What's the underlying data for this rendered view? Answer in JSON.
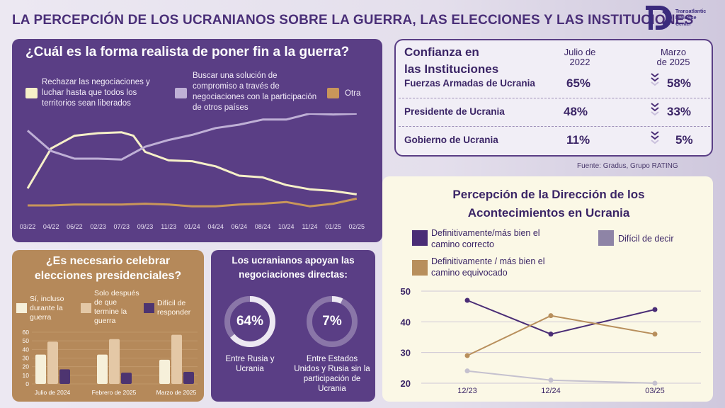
{
  "title": "LA PERCEPCIÓN DE LOS UCRANIANOS SOBRE LA GUERRA, LAS ELECCIONES Y LAS INSTITUCIONES",
  "logo": {
    "line1": "Transatlantic",
    "line2": "Dialogue",
    "line3": "Center"
  },
  "war": {
    "title": "¿Cuál es la forma realista de poner fin a la guerra?",
    "legend": [
      {
        "label": "Rechazar las negociaciones y luchar hasta que todos los territorios sean liberados",
        "color": "#f6f0c8"
      },
      {
        "label": "Buscar una solución de compromiso a través de negociaciones con la participación de otros países",
        "color": "#bfb0d6"
      },
      {
        "label": "Otra",
        "color": "#c9965a"
      }
    ]
  },
  "trust": {
    "title_line1": "Confianza en",
    "title_line2": "las Instituciones",
    "col1_line1": "Julio de",
    "col1_line2": "2022",
    "col2_line1": "Marzo",
    "col2_line2": "de 2025",
    "rows": [
      {
        "name": "Fuerzas Armadas de Ucrania",
        "v2022": "65%",
        "v2025": "58%"
      },
      {
        "name": "Presidente de Ucrania",
        "v2022": "48%",
        "v2025": "33%"
      },
      {
        "name": "Gobierno de Ucrania",
        "v2022": "11%",
        "v2025": "5%"
      }
    ],
    "source": "Fuente: Gradus, Grupo RATING"
  },
  "direction": {
    "title_line1": "Percepción de la Dirección de los",
    "title_line2": "Acontecimientos en Ucrania",
    "legend": [
      {
        "label_line1": "Definitivamente/más bien el",
        "label_line2": "camino correcto",
        "color": "#4a2d76"
      },
      {
        "label_line1": "Difícil de decir",
        "label_line2": "",
        "color": "#8e84a6"
      },
      {
        "label_line1": "Definitivamente / más bien el",
        "label_line2": "camino equivocado",
        "color": "#b88f5c"
      }
    ]
  },
  "elections": {
    "title_line1": "¿Es necesario celebrar",
    "title_line2": "elecciones presidenciales?",
    "legend": [
      {
        "lines": [
          "Sí, incluso",
          "durante la",
          "guerra"
        ],
        "color": "#f6f0da"
      },
      {
        "lines": [
          "Solo después",
          "de que",
          "termine la",
          "guerra"
        ],
        "color": "#e4c8a6"
      },
      {
        "lines": [
          "Difícil de",
          "responder"
        ],
        "color": "#4d3470"
      }
    ]
  },
  "negotiations": {
    "title_line1": "Los ucranianos apoyan las",
    "title_line2": "negociaciones directas:",
    "items": [
      {
        "value": "64%",
        "fraction": 0.64,
        "lines": [
          "Entre Rusia y",
          "Ucrania"
        ]
      },
      {
        "value": "7%",
        "fraction": 0.07,
        "lines": [
          "Entre Estados",
          "Unidos y Rusia sin la",
          "participación de",
          "Ucrania"
        ]
      }
    ]
  },
  "chart_data": [
    {
      "type": "line",
      "title": "¿Cuál es la forma realista de poner fin a la guerra?",
      "x": [
        "03/22",
        "04/22",
        "06/22",
        "02/23",
        "07/23",
        "09/23",
        "11/23",
        "01/24",
        "04/24",
        "06/24",
        "08/24",
        "10/24",
        "11/24",
        "01/25",
        "02/25"
      ],
      "series": [
        {
          "name": "Rechazar las negociaciones y luchar hasta que todos los territorios sean liberados",
          "color": "#f6f0c8",
          "values": [
            null,
            null,
            null,
            null,
            null,
            null,
            null,
            null,
            null,
            null,
            null,
            null,
            null,
            null,
            null
          ],
          "points": [
            [
              0,
              0.3
            ],
            [
              1,
              0.77
            ],
            [
              2,
              0.92
            ],
            [
              3,
              0.95
            ],
            [
              4,
              0.96
            ],
            [
              4.5,
              0.92
            ],
            [
              5,
              0.73
            ],
            [
              6,
              0.63
            ],
            [
              7,
              0.62
            ],
            [
              8,
              0.56
            ],
            [
              9,
              0.45
            ],
            [
              10,
              0.43
            ],
            [
              11,
              0.34
            ],
            [
              12,
              0.29
            ],
            [
              13,
              0.27
            ],
            [
              14,
              0.23
            ]
          ]
        },
        {
          "name": "Buscar una solución de compromiso a través de negociaciones con la participación de otros países",
          "color": "#bfb0d6",
          "points": [
            [
              0,
              0.98
            ],
            [
              1,
              0.74
            ],
            [
              2,
              0.65
            ],
            [
              3,
              0.65
            ],
            [
              4,
              0.64
            ],
            [
              5,
              0.79
            ],
            [
              6,
              0.87
            ],
            [
              7,
              0.93
            ],
            [
              8,
              1.01
            ],
            [
              9,
              1.05
            ],
            [
              10,
              1.11
            ],
            [
              11,
              1.11
            ],
            [
              12,
              1.18
            ],
            [
              13,
              1.17
            ],
            [
              14,
              1.18
            ]
          ]
        },
        {
          "name": "Otra",
          "color": "#c9965a",
          "points": [
            [
              0,
              0.1
            ],
            [
              1,
              0.1
            ],
            [
              2,
              0.11
            ],
            [
              3,
              0.11
            ],
            [
              4,
              0.11
            ],
            [
              5,
              0.12
            ],
            [
              6,
              0.11
            ],
            [
              7,
              0.09
            ],
            [
              8,
              0.09
            ],
            [
              9,
              0.11
            ],
            [
              10,
              0.12
            ],
            [
              11,
              0.14
            ],
            [
              12,
              0.09
            ],
            [
              13,
              0.12
            ],
            [
              14,
              0.18
            ]
          ]
        }
      ]
    },
    {
      "type": "bar",
      "title": "¿Es necesario celebrar elecciones presidenciales?",
      "categories": [
        "Julio de 2024",
        "Febrero de 2025",
        "Marzo de 2025"
      ],
      "ylim": [
        0,
        60
      ],
      "yticks": [
        0,
        10,
        20,
        30,
        40,
        50,
        60
      ],
      "series": [
        {
          "name": "Sí, incluso durante la guerra",
          "color": "#f6f0da",
          "values": [
            34,
            34,
            28
          ]
        },
        {
          "name": "Solo después de que termine la guerra",
          "color": "#e4c8a6",
          "values": [
            49,
            52,
            57
          ]
        },
        {
          "name": "Difícil de responder",
          "color": "#4d3470",
          "values": [
            17,
            13,
            14
          ]
        }
      ]
    },
    {
      "type": "line",
      "title": "Percepción de la Dirección de los Acontecimientos en Ucrania",
      "x": [
        "12/23",
        "12/24",
        "03/25"
      ],
      "ylim": [
        20,
        50
      ],
      "yticks": [
        20,
        30,
        40,
        50
      ],
      "series": [
        {
          "name": "Definitivamente/más bien el camino correcto",
          "color": "#4a2d76",
          "values": [
            47,
            36,
            44
          ]
        },
        {
          "name": "Definitivamente / más bien el camino equivocado",
          "color": "#b88f5c",
          "values": [
            29,
            42,
            36
          ]
        },
        {
          "name": "Difícil de decir",
          "color": "#c5c1cf",
          "values": [
            24,
            21,
            20
          ]
        }
      ]
    }
  ]
}
